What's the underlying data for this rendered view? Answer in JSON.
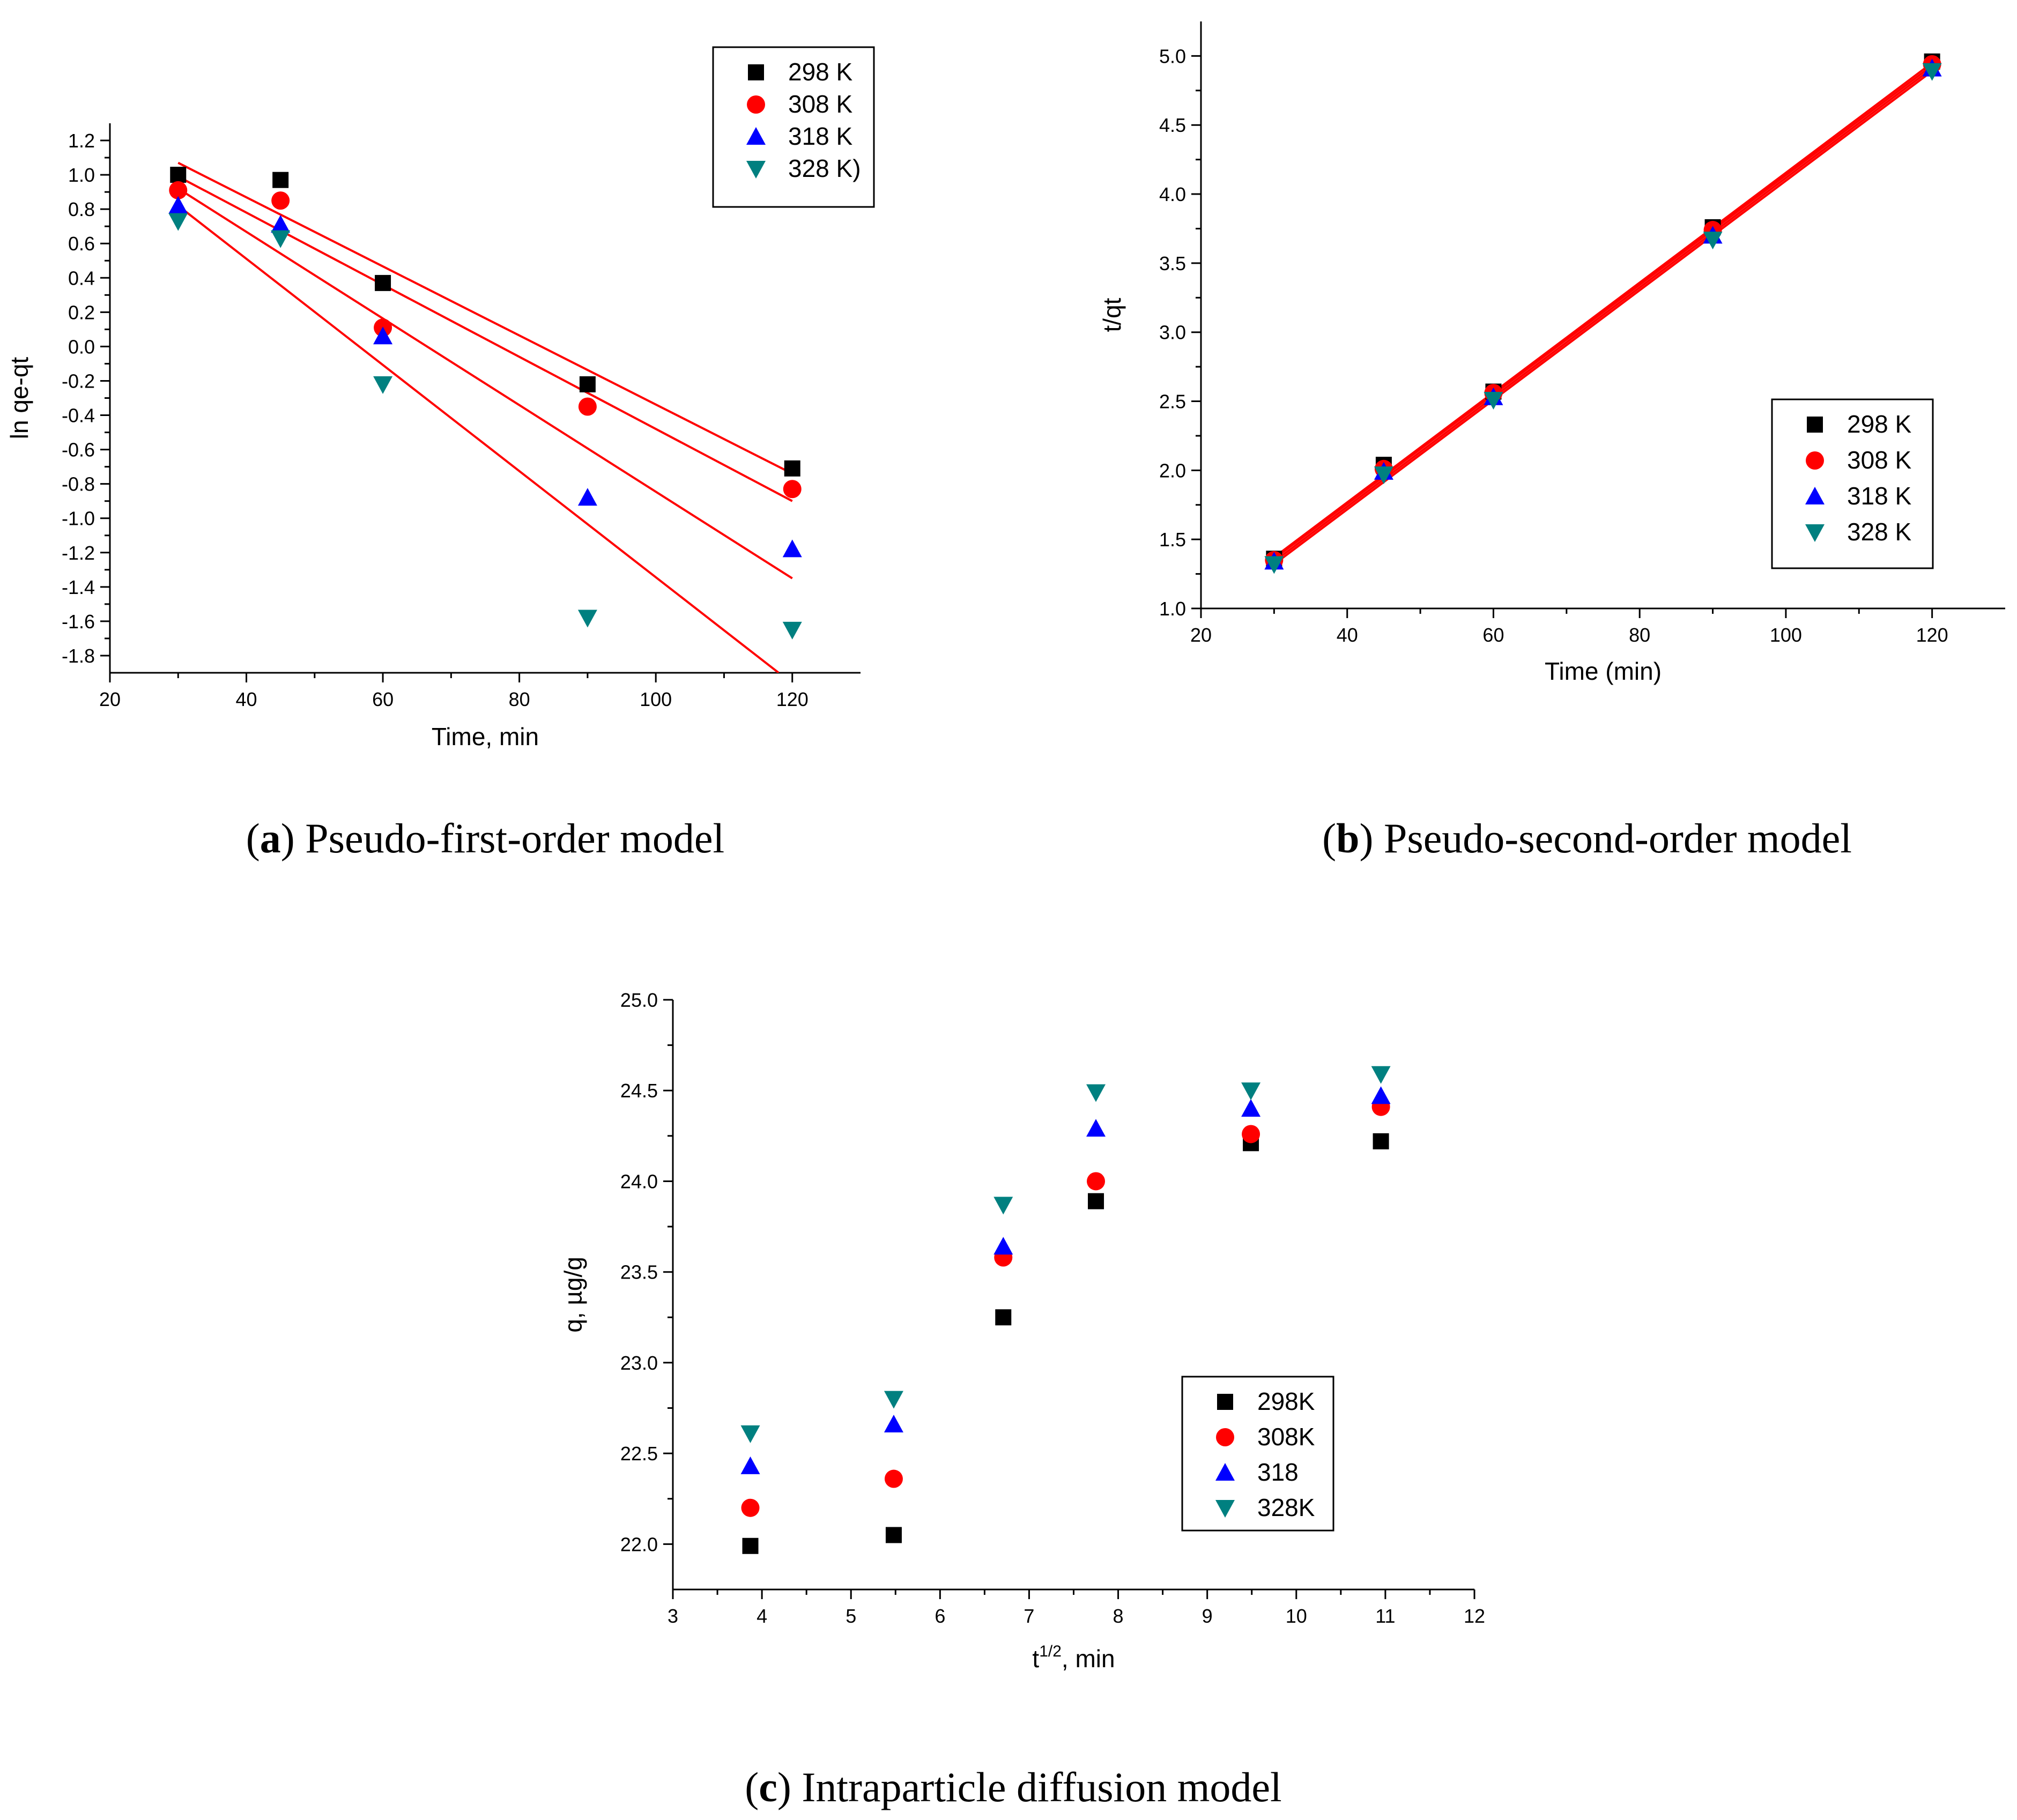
{
  "chart_data": [
    {
      "id": "a",
      "type": "scatter",
      "caption_letter": "a",
      "caption_text": "Pseudo-first-order model",
      "title": "",
      "xlabel": "Time, min",
      "ylabel": "ln qe-qt",
      "xlim": [
        20,
        130
      ],
      "ylim": [
        -1.9,
        1.3
      ],
      "xticks": [
        20,
        40,
        60,
        80,
        100,
        120
      ],
      "xtick_labels": [
        "20",
        "40",
        "60",
        "80",
        "100",
        "120"
      ],
      "yticks": [
        1.2,
        1.0,
        0.8,
        0.6,
        0.4,
        0.2,
        0.0,
        -0.2,
        -0.4,
        -0.6,
        -0.8,
        -1.0,
        -1.2,
        -1.4,
        -1.6,
        -1.8
      ],
      "ytick_labels": [
        "1.2",
        "1.0",
        "0.8",
        "0.6",
        "0.4",
        "0.2",
        "0.0",
        "-0.2",
        "-0.4",
        "-0.6",
        "-0.8",
        "-1.0",
        "-1.2",
        "-1.4",
        "-1.6",
        "-1.8"
      ],
      "legend_position": "top-right",
      "fit_line_color": "#ff0000",
      "series": [
        {
          "name": "298 K",
          "marker": "square",
          "color": "#000000",
          "x": [
            30,
            45,
            60,
            90,
            120
          ],
          "y": [
            1.0,
            0.97,
            0.37,
            -0.22,
            -0.71
          ],
          "fit": {
            "x": [
              30,
              120
            ],
            "y": [
              1.07,
              -0.74
            ]
          }
        },
        {
          "name": "308 K",
          "marker": "circle",
          "color": "#ff0000",
          "x": [
            30,
            45,
            60,
            90,
            120
          ],
          "y": [
            0.91,
            0.85,
            0.11,
            -0.35,
            -0.83
          ],
          "fit": {
            "x": [
              30,
              120
            ],
            "y": [
              0.99,
              -0.9
            ]
          }
        },
        {
          "name": "318 K",
          "marker": "triangle-up",
          "color": "#0000ff",
          "x": [
            30,
            45,
            60,
            90,
            120
          ],
          "y": [
            0.82,
            0.71,
            0.06,
            -0.88,
            -1.18
          ],
          "fit": {
            "x": [
              30,
              120
            ],
            "y": [
              0.92,
              -1.35
            ]
          }
        },
        {
          "name": "328 K)",
          "marker": "triangle-down",
          "color": "#008080",
          "x": [
            30,
            45,
            60,
            90,
            120
          ],
          "y": [
            0.73,
            0.63,
            -0.22,
            -1.58,
            -1.65
          ],
          "fit": {
            "x": [
              30,
              118
            ],
            "y": [
              0.82,
              -1.9
            ]
          }
        }
      ]
    },
    {
      "id": "b",
      "type": "scatter",
      "caption_letter": "b",
      "caption_text": "Pseudo-second-order model",
      "title": "",
      "xlabel": "Time (min)",
      "ylabel": "t/qt",
      "xlim": [
        20,
        130
      ],
      "ylim": [
        1.0,
        5.25
      ],
      "xticks": [
        20,
        40,
        60,
        80,
        100,
        120
      ],
      "xtick_labels": [
        "20",
        "40",
        "60",
        "80",
        "100",
        "120"
      ],
      "yticks": [
        1.0,
        1.5,
        2.0,
        2.5,
        3.0,
        3.5,
        4.0,
        4.5,
        5.0
      ],
      "ytick_labels": [
        "1.0",
        "1.5",
        "2.0",
        "2.5",
        "3.0",
        "3.5",
        "4.0",
        "4.5",
        "5.0"
      ],
      "legend_position": "bottom-right",
      "fit_line_color": "#ff0000",
      "series": [
        {
          "name": "298 K",
          "marker": "square",
          "color": "#000000",
          "x": [
            30,
            45,
            60,
            90,
            120
          ],
          "y": [
            1.36,
            2.04,
            2.57,
            3.76,
            4.96
          ],
          "fit": {
            "x": [
              30,
              120
            ],
            "y": [
              1.37,
              4.95
            ]
          }
        },
        {
          "name": "308 K",
          "marker": "circle",
          "color": "#ff0000",
          "x": [
            30,
            45,
            60,
            90,
            120
          ],
          "y": [
            1.35,
            2.01,
            2.56,
            3.74,
            4.94
          ],
          "fit": {
            "x": [
              30,
              120
            ],
            "y": [
              1.36,
              4.93
            ]
          }
        },
        {
          "name": "318 K",
          "marker": "triangle-up",
          "color": "#0000ff",
          "x": [
            30,
            45,
            60,
            90,
            120
          ],
          "y": [
            1.34,
            1.99,
            2.53,
            3.7,
            4.91
          ],
          "fit": {
            "x": [
              30,
              120
            ],
            "y": [
              1.34,
              4.91
            ]
          }
        },
        {
          "name": "328 K",
          "marker": "triangle-down",
          "color": "#008080",
          "x": [
            30,
            45,
            60,
            90,
            120
          ],
          "y": [
            1.32,
            1.97,
            2.51,
            3.67,
            4.89
          ],
          "fit": {
            "x": [
              30,
              120
            ],
            "y": [
              1.32,
              4.89
            ]
          }
        }
      ]
    },
    {
      "id": "c",
      "type": "scatter",
      "caption_letter": "c",
      "caption_text": "Intraparticle diffusion model",
      "title": "",
      "xlabel": "t",
      "xlabel_sup": "1/2",
      "xlabel_suffix": ", min",
      "ylabel": "q, µg/g",
      "xlim": [
        3,
        12
      ],
      "ylim": [
        21.75,
        25.0
      ],
      "xticks": [
        3,
        4,
        5,
        6,
        7,
        8,
        9,
        10,
        11,
        12
      ],
      "xtick_labels": [
        "3",
        "4",
        "5",
        "6",
        "7",
        "8",
        "9",
        "10",
        "11",
        "12"
      ],
      "yticks": [
        22.0,
        22.5,
        23.0,
        23.5,
        24.0,
        24.5,
        25.0
      ],
      "ytick_labels": [
        "22.0",
        "22.5",
        "23.0",
        "23.5",
        "24.0",
        "24.5",
        "25.0"
      ],
      "legend_position": "lower-right",
      "series": [
        {
          "name": "298K",
          "marker": "square",
          "color": "#000000",
          "x": [
            3.87,
            5.48,
            6.71,
            7.75,
            9.49,
            10.95
          ],
          "y": [
            21.99,
            22.05,
            23.25,
            23.89,
            24.21,
            24.22
          ]
        },
        {
          "name": "308K",
          "marker": "circle",
          "color": "#ff0000",
          "x": [
            3.87,
            5.48,
            6.71,
            7.75,
            9.49,
            10.95
          ],
          "y": [
            22.2,
            22.36,
            23.58,
            24.0,
            24.26,
            24.41
          ]
        },
        {
          "name": "318",
          "marker": "triangle-up",
          "color": "#0000ff",
          "x": [
            3.87,
            5.48,
            6.71,
            7.75,
            9.49,
            10.95
          ],
          "y": [
            22.43,
            22.66,
            23.64,
            24.29,
            24.4,
            24.47
          ]
        },
        {
          "name": "328K",
          "marker": "triangle-down",
          "color": "#008080",
          "x": [
            3.87,
            5.48,
            6.71,
            7.75,
            9.49,
            10.95
          ],
          "y": [
            22.61,
            22.8,
            23.87,
            24.49,
            24.5,
            24.59
          ]
        }
      ]
    }
  ]
}
